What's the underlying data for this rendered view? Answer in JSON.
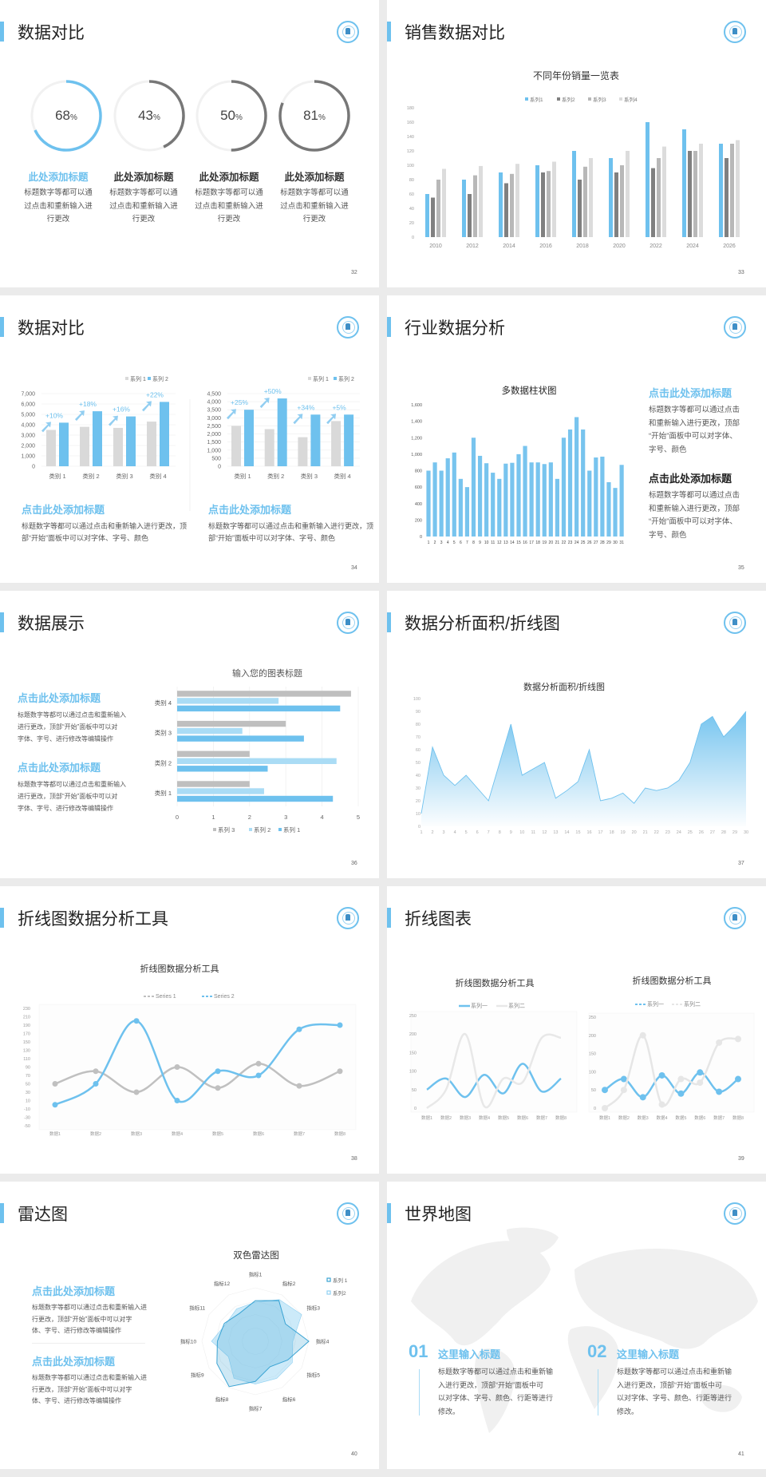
{
  "theme": {
    "accent": "#6ec1ee",
    "dark_gray": "#777777",
    "background": "#ebebeb"
  },
  "slides": [
    {
      "page": "32",
      "title": "数据对比",
      "logo": "school-logo",
      "rings": [
        {
          "value": 68,
          "unit": "%",
          "heading": "此处添加标题",
          "desc": [
            "标题数字等都可以通",
            "过点击和重新输入进",
            "行更改"
          ]
        },
        {
          "value": 43,
          "unit": "%",
          "heading": "此处添加标题",
          "desc": [
            "标题数字等都可以通",
            "过点击和重新输入进",
            "行更改"
          ]
        },
        {
          "value": 50,
          "unit": "%",
          "heading": "此处添加标题",
          "desc": [
            "标题数字等都可以通",
            "过点击和重新输入进",
            "行更改"
          ]
        },
        {
          "value": 81,
          "unit": "%",
          "heading": "此处添加标题",
          "desc": [
            "标题数字等都可以通",
            "过点击和重新输入进",
            "行更改"
          ]
        }
      ]
    },
    {
      "page": "33",
      "title": "销售数据对比"
    },
    {
      "page": "34",
      "title": "数据对比",
      "blocks": [
        {
          "heading": "点击此处添加标题",
          "desc": [
            "标题数字等都可以通过点击和重新输入进行更改，顶",
            "部“开始”面板中可以对字体、字号、颜色"
          ]
        },
        {
          "heading": "点击此处添加标题",
          "desc": [
            "标题数字等都可以通过点击和重新输入进行更改，顶",
            "部“开始”面板中可以对字体、字号、颜色"
          ]
        }
      ]
    },
    {
      "page": "35",
      "title": "行业数据分析",
      "blocks": [
        {
          "heading": "点击此处添加标题",
          "desc": [
            "标题数字等都可以通过点击",
            "和重新输入进行更改，顶部",
            "“开始”面板中可以对字体、",
            "字号、颜色"
          ]
        },
        {
          "heading": "点击此处添加标题",
          "desc": [
            "标题数字等都可以通过点击",
            "和重新输入进行更改，顶部",
            "“开始”面板中可以对字体、",
            "字号、颜色"
          ]
        }
      ]
    },
    {
      "page": "36",
      "title": "数据展示",
      "blocks": [
        {
          "heading": "点击此处添加标题",
          "desc": [
            "标题数字等都可以通过点击和重新输入",
            "进行更改，顶部“开始”面板中可以对",
            "字体、字号、进行修改等编辑操作"
          ]
        },
        {
          "heading": "点击此处添加标题",
          "desc": [
            "标题数字等都可以通过点击和重新输入",
            "进行更改，顶部“开始”面板中可以对",
            "字体、字号、进行修改等编辑操作"
          ]
        }
      ]
    },
    {
      "page": "37",
      "title": "数据分析面积/折线图"
    },
    {
      "page": "38",
      "title": "折线图数据分析工具"
    },
    {
      "page": "39",
      "title": "折线图表"
    },
    {
      "page": "40",
      "title": "雷达图",
      "blocks": [
        {
          "heading": "点击此处添加标题",
          "desc": [
            "标题数字等都可以通过点击和重新输入进",
            "行更改，顶部“开始”面板中可以对字",
            "体、字号、进行修改等编辑操作"
          ]
        },
        {
          "heading": "点击此处添加标题",
          "desc": [
            "标题数字等都可以通过点击和重新输入进",
            "行更改，顶部“开始”面板中可以对字",
            "体、字号、进行修改等编辑操作"
          ]
        }
      ]
    },
    {
      "page": "41",
      "title": "世界地图",
      "items": [
        {
          "number": "01",
          "heading": "这里输入标题",
          "desc": [
            "标题数字等都可以通过点击和重新输",
            "入进行更改，顶部“开始”面板中可",
            "以对字体、字号、颜色、行距等进行",
            "修改。"
          ]
        },
        {
          "number": "02",
          "heading": "这里输入标题",
          "desc": [
            "标题数字等都可以通过点击和重新输",
            "入进行更改，顶部“开始”面板中可",
            "以对字体、字号、颜色、行距等进行",
            "修改。"
          ]
        }
      ]
    }
  ],
  "chart_data": [
    {
      "type": "bar",
      "title": "不同年份销量一览表",
      "legend": "top",
      "categories": [
        "2010",
        "2012",
        "2014",
        "2016",
        "2018",
        "2020",
        "2022",
        "2024",
        "2026"
      ],
      "ylim": [
        0,
        180
      ],
      "ytick_step": 20,
      "grid": false,
      "series": [
        {
          "name": "系列1",
          "color": "#6ec1ee",
          "values": [
            60,
            80,
            90,
            100,
            120,
            110,
            160,
            150,
            130
          ]
        },
        {
          "name": "系列2",
          "color": "#808080",
          "values": [
            55,
            60,
            75,
            90,
            80,
            90,
            96,
            120,
            110
          ]
        },
        {
          "name": "系列3",
          "color": "#b8b8b8",
          "values": [
            80,
            86,
            88,
            92,
            98,
            100,
            110,
            120,
            130
          ]
        },
        {
          "name": "系列4",
          "color": "#dcdcdc",
          "values": [
            95,
            99,
            102,
            105,
            110,
            120,
            126,
            130,
            135
          ]
        }
      ]
    },
    {
      "type": "bar",
      "legend": "top-right",
      "categories": [
        "类别 1",
        "类别 2",
        "类别 3",
        "类别 4"
      ],
      "ylim": [
        0,
        7000
      ],
      "ytick_step": 1000,
      "grid": true,
      "annotations": [
        "+10%",
        "+18%",
        "+16%",
        "+22%"
      ],
      "series": [
        {
          "name": "系列 1",
          "color": "#d9d9d9",
          "values": [
            3500,
            3800,
            3700,
            4300
          ]
        },
        {
          "name": "系列 2",
          "color": "#6ec1ee",
          "values": [
            4200,
            5300,
            4800,
            6200
          ]
        }
      ]
    },
    {
      "type": "bar",
      "legend": "top-right",
      "categories": [
        "类别 1",
        "类别 2",
        "类别 3",
        "类别 4"
      ],
      "ylim": [
        0,
        4500
      ],
      "ytick_step": 500,
      "grid": true,
      "annotations": [
        "+25%",
        "+50%",
        "+34%",
        "+5%"
      ],
      "series": [
        {
          "name": "系列 1",
          "color": "#d9d9d9",
          "values": [
            2500,
            2300,
            1800,
            2800
          ]
        },
        {
          "name": "系列 2",
          "color": "#6ec1ee",
          "values": [
            3500,
            4200,
            3200,
            3200
          ]
        }
      ]
    },
    {
      "type": "bar",
      "title": "多数据柱状图",
      "ylim": [
        0,
        1600
      ],
      "ytick_step": 200,
      "grid": false,
      "categories": [
        "1",
        "2",
        "3",
        "4",
        "5",
        "6",
        "7",
        "8",
        "9",
        "10",
        "11",
        "12",
        "13",
        "14",
        "15",
        "16",
        "17",
        "18",
        "19",
        "20",
        "21",
        "22",
        "23",
        "24",
        "25",
        "26",
        "27",
        "28",
        "29",
        "30",
        "31"
      ],
      "values": [
        800,
        900,
        800,
        950,
        1020,
        700,
        600,
        1200,
        980,
        890,
        775,
        700,
        885,
        895,
        1000,
        1100,
        900,
        900,
        880,
        900,
        700,
        1200,
        1300,
        1450,
        1300,
        800,
        960,
        970,
        660,
        590,
        870
      ],
      "color": "#78c4ee"
    },
    {
      "type": "bar",
      "orientation": "horizontal",
      "title": "输入您的图表标题",
      "legend": "bottom",
      "categories": [
        "类别 1",
        "类别 2",
        "类别 3",
        "类别 4"
      ],
      "xlim": [
        0,
        5
      ],
      "xtick_step": 1,
      "grid": true,
      "series": [
        {
          "name": "系列 3",
          "color": "#bfbfbf",
          "values": [
            2,
            2,
            3,
            4.8
          ]
        },
        {
          "name": "系列 2",
          "color": "#aadcf5",
          "values": [
            2.4,
            4.4,
            1.8,
            2.8
          ]
        },
        {
          "name": "系列 1",
          "color": "#6ec1ee",
          "values": [
            4.3,
            2.5,
            3.5,
            4.5
          ]
        }
      ]
    },
    {
      "type": "area",
      "title": "数据分析面积/折线图",
      "ylim": [
        0,
        100
      ],
      "ytick_step": 10,
      "grid": false,
      "x": [
        1,
        2,
        3,
        4,
        5,
        6,
        7,
        8,
        9,
        10,
        11,
        12,
        13,
        14,
        15,
        16,
        17,
        18,
        19,
        20,
        21,
        22,
        23,
        24,
        25,
        26,
        27,
        28,
        29,
        30
      ],
      "values": [
        10,
        62,
        40,
        32,
        40,
        30,
        20,
        50,
        80,
        40,
        45,
        50,
        22,
        28,
        35,
        60,
        20,
        22,
        26,
        18,
        30,
        28,
        30,
        36,
        50,
        80,
        86,
        70,
        79,
        90
      ],
      "color": "#6ec1ee"
    },
    {
      "type": "line",
      "title": "折线图数据分析工具",
      "legend": "top",
      "smooth": true,
      "categories": [
        "数据1",
        "数据2",
        "数据3",
        "数据4",
        "数据5",
        "数据6",
        "数据7",
        "数据8"
      ],
      "ylim": [
        -50,
        230
      ],
      "ytick_step": 20,
      "series": [
        {
          "name": "Series 1",
          "color": "#c0c0c0",
          "values": [
            50,
            80,
            30,
            90,
            40,
            98,
            45,
            80
          ]
        },
        {
          "name": "Series 2",
          "color": "#6ec1ee",
          "values": [
            0,
            50,
            200,
            10,
            80,
            70,
            180,
            190
          ]
        }
      ]
    },
    {
      "type": "line",
      "title": "折线图数据分析工具",
      "legend": "top",
      "smooth": true,
      "markers": false,
      "categories": [
        "数据1",
        "数据2",
        "数据3",
        "数据4",
        "数据5",
        "数据6",
        "数据7",
        "数据8"
      ],
      "ylim": [
        0,
        250
      ],
      "ytick_step": 50,
      "series": [
        {
          "name": "系列一",
          "color": "#6ec1ee",
          "values": [
            50,
            80,
            30,
            90,
            40,
            120,
            45,
            80
          ]
        },
        {
          "name": "系列二",
          "color": "#e8e8e8",
          "values": [
            0,
            50,
            200,
            5,
            80,
            70,
            190,
            190
          ]
        }
      ]
    },
    {
      "type": "line",
      "title": "折线图数据分析工具",
      "legend": "top",
      "smooth": true,
      "markers": true,
      "categories": [
        "数据1",
        "数据2",
        "数据3",
        "数据4",
        "数据5",
        "数据6",
        "数据7",
        "数据8"
      ],
      "ylim": [
        0,
        250
      ],
      "ytick_step": 50,
      "series": [
        {
          "name": "系列一",
          "color": "#6ec1ee",
          "values": [
            50,
            80,
            30,
            90,
            40,
            98,
            45,
            80
          ]
        },
        {
          "name": "系列二",
          "color": "#e6e6e6",
          "values": [
            0,
            50,
            200,
            10,
            80,
            70,
            180,
            190
          ]
        }
      ]
    },
    {
      "type": "radar",
      "title": "双色雷达图",
      "legend": "top-right",
      "categories": [
        "指标1",
        "指标2",
        "指标3",
        "指标4",
        "指标5",
        "指标6",
        "指标7",
        "指标8",
        "指标9",
        "指标10",
        "指标11",
        "指标12"
      ],
      "rlim": [
        0,
        100
      ],
      "series": [
        {
          "name": "系列 1",
          "color": "#3aa3d3",
          "values": [
            76,
            88,
            65,
            100,
            70,
            55,
            75,
            98,
            83,
            71,
            67,
            60
          ]
        },
        {
          "name": "系列2",
          "color": "#8fd0f2",
          "values": [
            73,
            90,
            100,
            70,
            80,
            80,
            80,
            80,
            58,
            82,
            64,
            70
          ]
        }
      ]
    }
  ]
}
